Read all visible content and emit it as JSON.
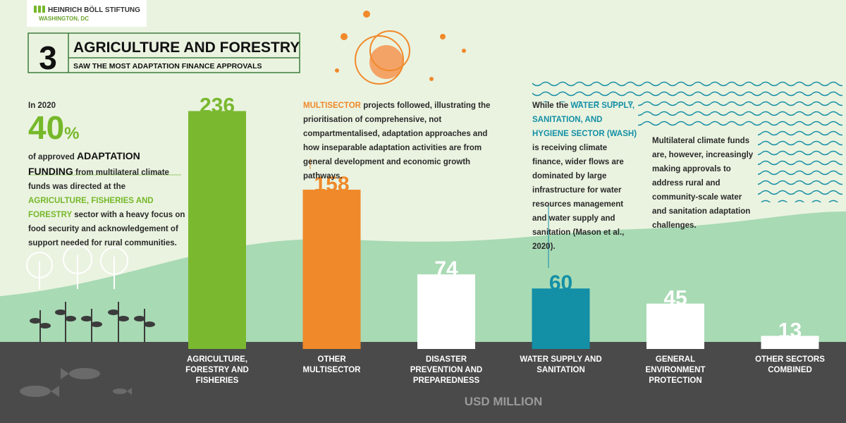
{
  "header": {
    "org": "HEINRICH BÖLL STIFTUNG",
    "office": "WASHINGTON, DC"
  },
  "chart_data": {
    "type": "bar",
    "number": "3",
    "title": "AGRICULTURE AND FORESTRY",
    "subtitle": "SAW THE MOST ADAPTATION FINANCE APPROVALS",
    "categories": [
      "AGRICULTURE, FORESTRY AND FISHERIES",
      "OTHER MULTISECTOR",
      "DISASTER PREVENTION AND PREPAREDNESS",
      "WATER SUPPLY AND SANITATION",
      "GENERAL ENVIRONMENT PROTECTION",
      "OTHER SECTORS COMBINED"
    ],
    "values": [
      236,
      158,
      74,
      60,
      45,
      13
    ],
    "colors": [
      "#7ab830",
      "#f0892a",
      "#ffffff",
      "#138fa6",
      "#ffffff",
      "#ffffff"
    ],
    "value_axis_label": "USD MILLION",
    "annotations": {
      "agriculture": {
        "year": "In 2020",
        "share": "40",
        "unit": "%",
        "pre": "of approved",
        "strong": "ADAPTATION FUNDING",
        "mid": "from multilateral climate funds was directed at the",
        "highlight": "AGRICULTURE, FISHERIES AND FORESTRY",
        "post": "sector with a heavy focus on food security and acknowledgement of support needed for rural communities."
      },
      "multisector": {
        "highlight": "MULTISECTOR",
        "text": "projects followed, illustrating the prioritisation of comprehensive, not compartmentalised, adaptation approaches and how inseparable adaptation activities are from general development and economic growth pathways."
      },
      "wash": {
        "pre": "While the",
        "highlight": "WATER SUPPLY, SANITATION, AND HYGIENE SECTOR (WASH)",
        "post": "is receiving climate finance, wider flows are dominated by large infrastructure for water resources management and water supply and sanitation (Mason et al., 2020)."
      },
      "multilateral": "Multilateral climate funds are, however, increasingly making approvals to address rural and community-scale water and sanitation adaptation challenges."
    }
  }
}
